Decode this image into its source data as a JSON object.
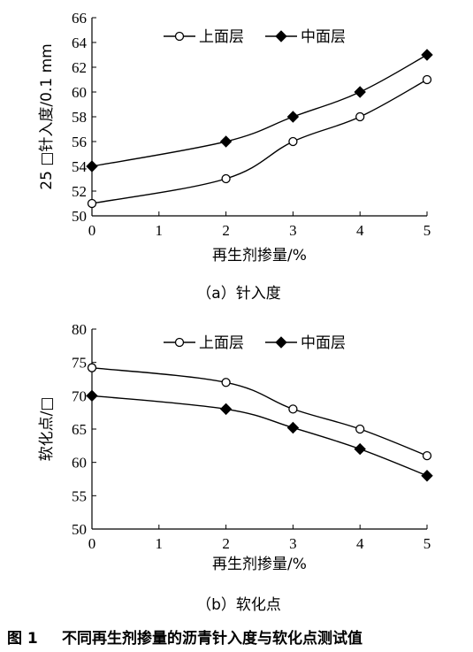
{
  "chart_data": [
    {
      "type": "line",
      "title": "",
      "xlabel": "再生剂掺量/%",
      "ylabel": "25 □针入度/0.1 mm",
      "subcaption": "（a）针入度",
      "xlim": [
        0,
        5
      ],
      "ylim": [
        50,
        66
      ],
      "xticks": [
        0,
        1,
        2,
        3,
        4,
        5
      ],
      "yticks": [
        50,
        52,
        54,
        56,
        58,
        60,
        62,
        64,
        66
      ],
      "x": [
        0,
        2,
        3,
        4,
        5
      ],
      "legend_position": "top-center",
      "grid": false,
      "series": [
        {
          "name": "上面层",
          "marker": "circle-open",
          "values": [
            51,
            53,
            56,
            58,
            61
          ]
        },
        {
          "name": "中面层",
          "marker": "diamond-filled",
          "values": [
            54,
            56,
            58,
            60,
            63
          ]
        }
      ]
    },
    {
      "type": "line",
      "title": "",
      "xlabel": "再生剂掺量/%",
      "ylabel": "软化点/□",
      "subcaption": "（b）软化点",
      "xlim": [
        0,
        5
      ],
      "ylim": [
        50,
        80
      ],
      "xticks": [
        0,
        1,
        2,
        3,
        4,
        5
      ],
      "yticks": [
        50,
        55,
        60,
        65,
        70,
        75,
        80
      ],
      "x": [
        0,
        2,
        3,
        4,
        5
      ],
      "legend_position": "top-center",
      "grid": false,
      "series": [
        {
          "name": "上面层",
          "marker": "circle-open",
          "values": [
            74.2,
            72,
            68,
            65,
            61
          ]
        },
        {
          "name": "中面层",
          "marker": "diamond-filled",
          "values": [
            70,
            68,
            65.2,
            62,
            58
          ]
        }
      ]
    }
  ],
  "figure_caption": {
    "number": "图 1",
    "text": "不同再生剂掺量的沥青针入度与软化点测试值"
  }
}
